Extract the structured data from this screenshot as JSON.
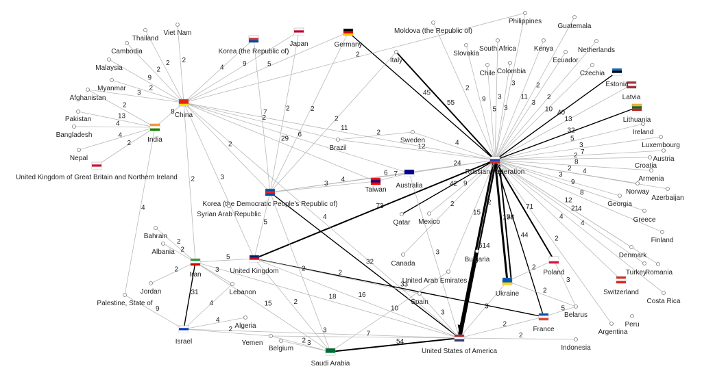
{
  "colors": {
    "edge": "#b8b8b8",
    "edge_strong": "#000000",
    "text": "#222222"
  },
  "nodes": [
    {
      "id": "ru",
      "label": "Russian Federation",
      "flag": [
        "#ffffff",
        "#1c3fb5",
        "#d52b1e"
      ]
    },
    {
      "id": "us",
      "label": "United States of America",
      "flag": [
        "#b22234",
        "#ffffff",
        "#3c3b6e"
      ]
    },
    {
      "id": "cn",
      "label": "China",
      "flag": [
        "#de2910",
        "#de2910",
        "#ffde00"
      ]
    },
    {
      "id": "in",
      "label": "India",
      "flag": [
        "#ff9933",
        "#ffffff",
        "#138808"
      ]
    },
    {
      "id": "kp",
      "label": "Korea (the Democratic People's Republic of)",
      "flag": [
        "#024fa2",
        "#ed1c27",
        "#024fa2"
      ]
    },
    {
      "id": "kr",
      "label": "Korea (the Republic of)",
      "flag": [
        "#ffffff",
        "#cd2e3a",
        "#0047a0"
      ]
    },
    {
      "id": "jp",
      "label": "Japan",
      "flag": [
        "#ffffff",
        "#bc002d",
        "#ffffff"
      ]
    },
    {
      "id": "de",
      "label": "Germany",
      "flag": [
        "#000000",
        "#dd0000",
        "#ffce00"
      ]
    },
    {
      "id": "gb",
      "label": "United Kingdom",
      "flag": [
        "#012169",
        "#c8102e",
        "#ffffff"
      ]
    },
    {
      "id": "ir",
      "label": "Iran",
      "flag": [
        "#239f40",
        "#ffffff",
        "#da0000"
      ]
    },
    {
      "id": "il",
      "label": "Israel",
      "flag": [
        "#ffffff",
        "#0038b8",
        "#ffffff"
      ]
    },
    {
      "id": "sa",
      "label": "Saudi Arabia",
      "flag": [
        "#006c35",
        "#006c35",
        "#ffffff"
      ]
    },
    {
      "id": "fr",
      "label": "France",
      "flag": [
        "#0055a4",
        "#ffffff",
        "#ef4135"
      ]
    },
    {
      "id": "ua",
      "label": "Ukraine",
      "flag": [
        "#0057b7",
        "#0057b7",
        "#ffd700"
      ]
    },
    {
      "id": "pl",
      "label": "Poland",
      "flag": [
        "#ffffff",
        "#ffffff",
        "#dc143c"
      ]
    },
    {
      "id": "ch",
      "label": "Switzerland",
      "flag": [
        "#d52b1e",
        "#ffffff",
        "#d52b1e"
      ]
    },
    {
      "id": "tw",
      "label": "Taiwan",
      "flag": [
        "#fe0000",
        "#000095",
        "#fe0000"
      ]
    },
    {
      "id": "au",
      "label": "Australia",
      "flag": [
        "#00008b",
        "#00008b",
        "#ffffff"
      ]
    },
    {
      "id": "lt",
      "label": "Lithuania",
      "flag": [
        "#fdb913",
        "#006a44",
        "#c1272d"
      ]
    },
    {
      "id": "lv",
      "label": "Latvia",
      "flag": [
        "#9e3039",
        "#ffffff",
        "#9e3039"
      ]
    },
    {
      "id": "ee",
      "label": "Estonia",
      "flag": [
        "#0072ce",
        "#000000",
        "#ffffff"
      ]
    },
    {
      "id": "gbni",
      "label": "United Kingdom of Great Britain and Northern Ireland",
      "flag": [
        "#ffffff",
        "#c8102e",
        "#ffffff"
      ]
    },
    {
      "id": "th",
      "label": "Thailand"
    },
    {
      "id": "vn",
      "label": "Viet Nam"
    },
    {
      "id": "kh",
      "label": "Cambodia"
    },
    {
      "id": "my",
      "label": "Malaysia"
    },
    {
      "id": "mm",
      "label": "Myanmar"
    },
    {
      "id": "af",
      "label": "Afghanistan"
    },
    {
      "id": "pk",
      "label": "Pakistan"
    },
    {
      "id": "bd",
      "label": "Bangladesh"
    },
    {
      "id": "np",
      "label": "Nepal"
    },
    {
      "id": "md",
      "label": "Moldova (the Republic of)"
    },
    {
      "id": "ph",
      "label": "Philippines"
    },
    {
      "id": "gt",
      "label": "Guatemala"
    },
    {
      "id": "it",
      "label": "Italy"
    },
    {
      "id": "sk",
      "label": "Slovakia"
    },
    {
      "id": "za",
      "label": "South Africa"
    },
    {
      "id": "ke",
      "label": "Kenya"
    },
    {
      "id": "nl",
      "label": "Netherlands"
    },
    {
      "id": "ec",
      "label": "Ecuador"
    },
    {
      "id": "cl",
      "label": "Chile"
    },
    {
      "id": "co",
      "label": "Colombia"
    },
    {
      "id": "cz",
      "label": "Czechia"
    },
    {
      "id": "ie",
      "label": "Ireland"
    },
    {
      "id": "lu",
      "label": "Luxembourg"
    },
    {
      "id": "at",
      "label": "Austria"
    },
    {
      "id": "hr",
      "label": "Croatia"
    },
    {
      "id": "am",
      "label": "Armenia"
    },
    {
      "id": "no",
      "label": "Norway"
    },
    {
      "id": "az",
      "label": "Azerbaijan"
    },
    {
      "id": "ge",
      "label": "Georgia"
    },
    {
      "id": "gr",
      "label": "Greece"
    },
    {
      "id": "fi",
      "label": "Finland"
    },
    {
      "id": "dk",
      "label": "Denmark"
    },
    {
      "id": "tr",
      "label": "Turkey"
    },
    {
      "id": "ro",
      "label": "Romania"
    },
    {
      "id": "cr",
      "label": "Costa Rica"
    },
    {
      "id": "pe",
      "label": "Peru"
    },
    {
      "id": "ar",
      "label": "Argentina"
    },
    {
      "id": "by",
      "label": "Belarus"
    },
    {
      "id": "bg",
      "label": "Bulgaria"
    },
    {
      "id": "ae",
      "label": "United Arab Emirates"
    },
    {
      "id": "es",
      "label": "Spain"
    },
    {
      "id": "ca",
      "label": "Canada"
    },
    {
      "id": "qa",
      "label": "Qatar"
    },
    {
      "id": "mx",
      "label": "Mexico"
    },
    {
      "id": "br",
      "label": "Brazil"
    },
    {
      "id": "se",
      "label": "Sweden"
    },
    {
      "id": "sy",
      "label": "Syrian Arab Republic"
    },
    {
      "id": "bh",
      "label": "Bahrain"
    },
    {
      "id": "al",
      "label": "Albania"
    },
    {
      "id": "jo",
      "label": "Jordan"
    },
    {
      "id": "lb",
      "label": "Lebanon"
    },
    {
      "id": "ps",
      "label": "Palestine, State of"
    },
    {
      "id": "dz",
      "label": "Algeria"
    },
    {
      "id": "ye",
      "label": "Yemen"
    },
    {
      "id": "be",
      "label": "Belgium"
    },
    {
      "id": "id",
      "label": "Indonesia"
    }
  ],
  "edges": [
    {
      "s": "ru",
      "t": "us",
      "w": 614
    },
    {
      "s": "ru",
      "t": "ua",
      "w": 174
    },
    {
      "s": "ru",
      "t": "ua",
      "w": 98
    },
    {
      "s": "ru",
      "t": "pl",
      "w": 71
    },
    {
      "s": "ru",
      "t": "fr",
      "w": 44
    },
    {
      "s": "ru",
      "t": "ee",
      "w": 40
    },
    {
      "s": "ru",
      "t": "lt",
      "w": 32
    },
    {
      "s": "ru",
      "t": "au",
      "w": 24
    },
    {
      "s": "ru",
      "t": "br",
      "w": 12
    },
    {
      "s": "ru",
      "t": "dk",
      "w": 12
    },
    {
      "s": "ru",
      "t": "cz",
      "w": 10
    },
    {
      "s": "ru",
      "t": "lv",
      "w": 13
    },
    {
      "s": "ru",
      "t": "ke",
      "w": 11
    },
    {
      "s": "ru",
      "t": "ie",
      "w": 5
    },
    {
      "s": "ru",
      "t": "lu",
      "w": 3
    },
    {
      "s": "ru",
      "t": "at",
      "w": 7
    },
    {
      "s": "ru",
      "t": "hr",
      "w": 2
    },
    {
      "s": "ru",
      "t": "am",
      "w": 8
    },
    {
      "s": "ru",
      "t": "no",
      "w": 2
    },
    {
      "s": "ru",
      "t": "ge",
      "w": 3
    },
    {
      "s": "ru",
      "t": "gr",
      "w": 9
    },
    {
      "s": "ru",
      "t": "tr",
      "w": 21
    },
    {
      "s": "ru",
      "t": "fi",
      "w": 8
    },
    {
      "s": "ru",
      "t": "ro",
      "w": 4
    },
    {
      "s": "ru",
      "t": "ar",
      "w": 2
    },
    {
      "s": "ru",
      "t": "ch",
      "w": 4
    },
    {
      "s": "ru",
      "t": "it",
      "w": 55
    },
    {
      "s": "ru",
      "t": "de",
      "w": 45
    },
    {
      "s": "ru",
      "t": "sk",
      "w": 9
    },
    {
      "s": "ru",
      "t": "za",
      "w": 3
    },
    {
      "s": "ru",
      "t": "cl",
      "w": 5
    },
    {
      "s": "ru",
      "t": "co",
      "w": 3
    },
    {
      "s": "ru",
      "t": "ph",
      "w": 3
    },
    {
      "s": "ru",
      "t": "gt",
      "w": 2
    },
    {
      "s": "ru",
      "t": "nl",
      "w": 2
    },
    {
      "s": "ru",
      "t": "ec",
      "w": 3
    },
    {
      "s": "ru",
      "t": "md",
      "w": 2
    },
    {
      "s": "ru",
      "t": "se",
      "w": 4
    },
    {
      "s": "ru",
      "t": "kp",
      "w": 6
    },
    {
      "s": "ru",
      "t": "cn",
      "w": 11
    },
    {
      "s": "ru",
      "t": "qa",
      "w": 42
    },
    {
      "s": "ru",
      "t": "gb",
      "w": 73
    },
    {
      "s": "ru",
      "t": "mx",
      "w": 9
    },
    {
      "s": "ru",
      "t": "ca",
      "w": 2
    },
    {
      "s": "ru",
      "t": "ae",
      "w": 15
    },
    {
      "s": "ru",
      "t": "bg",
      "w": 2
    },
    {
      "s": "ru",
      "t": "cr",
      "w": 4
    },
    {
      "s": "ru",
      "t": "az",
      "w": 4
    },
    {
      "s": "us",
      "t": "fr",
      "w": 2
    },
    {
      "s": "us",
      "t": "sa",
      "w": 54
    },
    {
      "s": "us",
      "t": "id",
      "w": 2
    },
    {
      "s": "us",
      "t": "ua",
      "w": 3
    },
    {
      "s": "us",
      "t": "es",
      "w": 3
    },
    {
      "s": "us",
      "t": "il",
      "w": 3
    },
    {
      "s": "us",
      "t": "gb",
      "w": 16
    },
    {
      "s": "us",
      "t": "kp",
      "w": 32
    },
    {
      "s": "us",
      "t": "ir",
      "w": 18
    },
    {
      "s": "us",
      "t": "cn",
      "w": 4
    },
    {
      "s": "us",
      "t": "au",
      "w": 3
    },
    {
      "s": "us",
      "t": "ye",
      "w": 7
    },
    {
      "s": "cn",
      "t": "th",
      "w": 2
    },
    {
      "s": "cn",
      "t": "vn",
      "w": 2
    },
    {
      "s": "cn",
      "t": "kh",
      "w": 2
    },
    {
      "s": "cn",
      "t": "my",
      "w": 9
    },
    {
      "s": "cn",
      "t": "mm",
      "w": 2
    },
    {
      "s": "cn",
      "t": "af",
      "w": 3
    },
    {
      "s": "cn",
      "t": "in",
      "w": 8
    },
    {
      "s": "cn",
      "t": "kr",
      "w": 4
    },
    {
      "s": "cn",
      "t": "jp",
      "w": 9
    },
    {
      "s": "cn",
      "t": "de",
      "w": 5
    },
    {
      "s": "cn",
      "t": "tw",
      "w": 29
    },
    {
      "s": "cn",
      "t": "ir",
      "w": 2
    },
    {
      "s": "cn",
      "t": "kp",
      "w": 2
    },
    {
      "s": "cn",
      "t": "au",
      "w": 6
    },
    {
      "s": "cn",
      "t": "br",
      "w": 2
    },
    {
      "s": "cn",
      "t": "ph",
      "w": 2
    },
    {
      "s": "cn",
      "t": "gb",
      "w": 3
    },
    {
      "s": "in",
      "t": "pk",
      "w": 13
    },
    {
      "s": "in",
      "t": "bd",
      "w": 4
    },
    {
      "s": "in",
      "t": "np",
      "w": 4
    },
    {
      "s": "in",
      "t": "af",
      "w": 2
    },
    {
      "s": "in",
      "t": "gbni",
      "w": 2
    },
    {
      "s": "in",
      "t": "ps",
      "w": 4
    },
    {
      "s": "kp",
      "t": "kr",
      "w": 7
    },
    {
      "s": "kp",
      "t": "jp",
      "w": 2
    },
    {
      "s": "kp",
      "t": "de",
      "w": 2
    },
    {
      "s": "kp",
      "t": "au",
      "w": 4
    },
    {
      "s": "kp",
      "t": "gb",
      "w": 5
    },
    {
      "s": "kp",
      "t": "sa",
      "w": 2
    },
    {
      "s": "kp",
      "t": "tw",
      "w": 3
    },
    {
      "s": "kp",
      "t": "it",
      "w": 2
    },
    {
      "s": "gb",
      "t": "ir",
      "w": 5
    },
    {
      "s": "gb",
      "t": "fr",
      "w": 33
    },
    {
      "s": "gb",
      "t": "sa",
      "w": 2
    },
    {
      "s": "gb",
      "t": "es",
      "w": 2
    },
    {
      "s": "ir",
      "t": "il",
      "w": 31
    },
    {
      "s": "ir",
      "t": "sa",
      "w": 15
    },
    {
      "s": "ir",
      "t": "jo",
      "w": 2
    },
    {
      "s": "ir",
      "t": "lb",
      "w": 3
    },
    {
      "s": "ir",
      "t": "al",
      "w": 2
    },
    {
      "s": "ir",
      "t": "bh",
      "w": 2
    },
    {
      "s": "il",
      "t": "ps",
      "w": 9
    },
    {
      "s": "il",
      "t": "lb",
      "w": 4
    },
    {
      "s": "il",
      "t": "ye",
      "w": 2
    },
    {
      "s": "il",
      "t": "dz",
      "w": 4
    },
    {
      "s": "sa",
      "t": "ye",
      "w": 2
    },
    {
      "s": "sa",
      "t": "ae",
      "w": 10
    },
    {
      "s": "sa",
      "t": "be",
      "w": 3
    },
    {
      "s": "fr",
      "t": "by",
      "w": 5
    },
    {
      "s": "ua",
      "t": "by",
      "w": 2
    },
    {
      "s": "pl",
      "t": "by",
      "w": 3
    },
    {
      "s": "ua",
      "t": "pl",
      "w": 2
    },
    {
      "s": "tw",
      "t": "au",
      "w": 7
    },
    {
      "s": "br",
      "t": "se",
      "w": 2
    }
  ]
}
